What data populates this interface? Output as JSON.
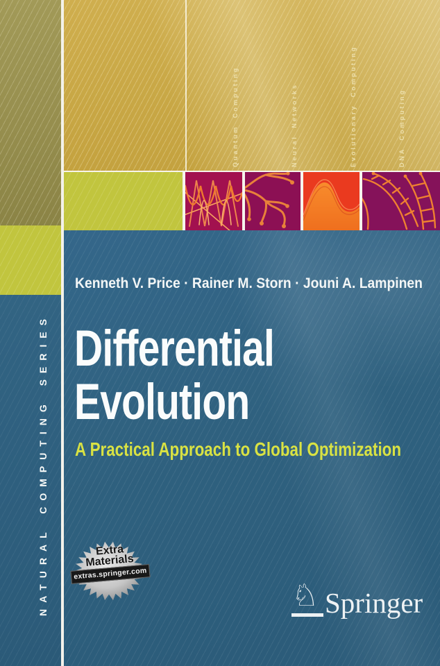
{
  "series": {
    "label": "NATURAL COMPUTING SERIES"
  },
  "topics": [
    {
      "label": "Quantum Computing"
    },
    {
      "label": "Neural Networks"
    },
    {
      "label": "Evolutionary Computing"
    },
    {
      "label": "DNA Computing"
    }
  ],
  "book": {
    "authors": "Kenneth V. Price · Rainer M. Storn · Jouni A. Lampinen",
    "title_line1": "Differential",
    "title_line2": "Evolution",
    "subtitle": "A Practical Approach to Global Optimization"
  },
  "badge": {
    "line1": "Extra",
    "line2": "Materials",
    "site": "extras.springer.com"
  },
  "publisher": {
    "name": "Springer"
  },
  "colors": {
    "teal": "#2f617f",
    "gold": "#c8a745",
    "olive": "#99914f",
    "lime": "#c1c53e",
    "subtitle_yellow": "#d9e243",
    "tile_magenta": "#a2114f",
    "tile_purple": "#8c1054",
    "tile_red": "#ea3a1f",
    "tile_plum": "#85125a",
    "accent_orange": "#ef8030"
  }
}
